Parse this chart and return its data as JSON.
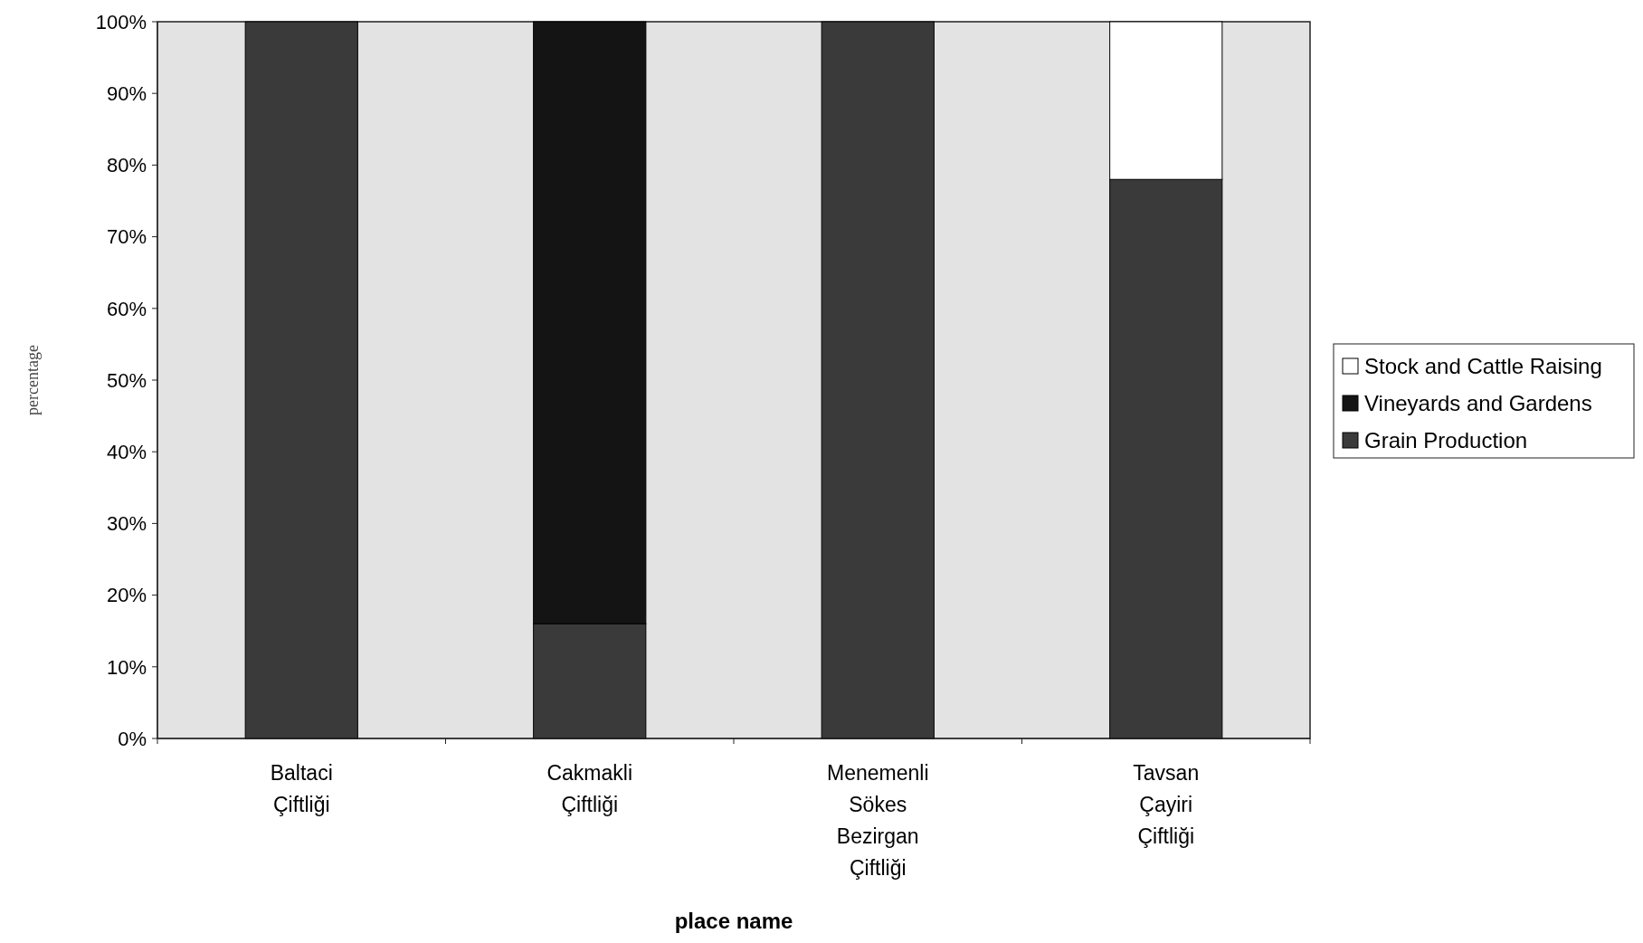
{
  "chart_data": {
    "type": "bar",
    "stacked": true,
    "xlabel": "place name",
    "ylabel": "percentage",
    "categories": [
      "Baltaci\nÇiftliği",
      "Cakmakli\nÇiftliği",
      "Menemenli\nSökes\nBezirgan\nÇiftliği",
      "Tavsan\nÇayiri\nÇiftliği"
    ],
    "series": [
      {
        "name": "Grain Production",
        "color": "#3a3a3a",
        "values": [
          100,
          16,
          100,
          78
        ]
      },
      {
        "name": "Vineyards and Gardens",
        "color": "#141414",
        "values": [
          0,
          84,
          0,
          0
        ]
      },
      {
        "name": "Stock and Cattle Raising",
        "color": "#ffffff",
        "values": [
          0,
          0,
          0,
          22
        ]
      }
    ],
    "ylim": [
      0,
      100
    ],
    "yticks": [
      {
        "value": 0,
        "label": "0%"
      },
      {
        "value": 10,
        "label": "10%"
      },
      {
        "value": 20,
        "label": "20%"
      },
      {
        "value": 30,
        "label": "30%"
      },
      {
        "value": 40,
        "label": "40%"
      },
      {
        "value": 50,
        "label": "50%"
      },
      {
        "value": 60,
        "label": "60%"
      },
      {
        "value": 70,
        "label": "70%"
      },
      {
        "value": 80,
        "label": "80%"
      },
      {
        "value": 90,
        "label": "90%"
      },
      {
        "value": 100,
        "label": "100%"
      }
    ],
    "legend": "right"
  }
}
